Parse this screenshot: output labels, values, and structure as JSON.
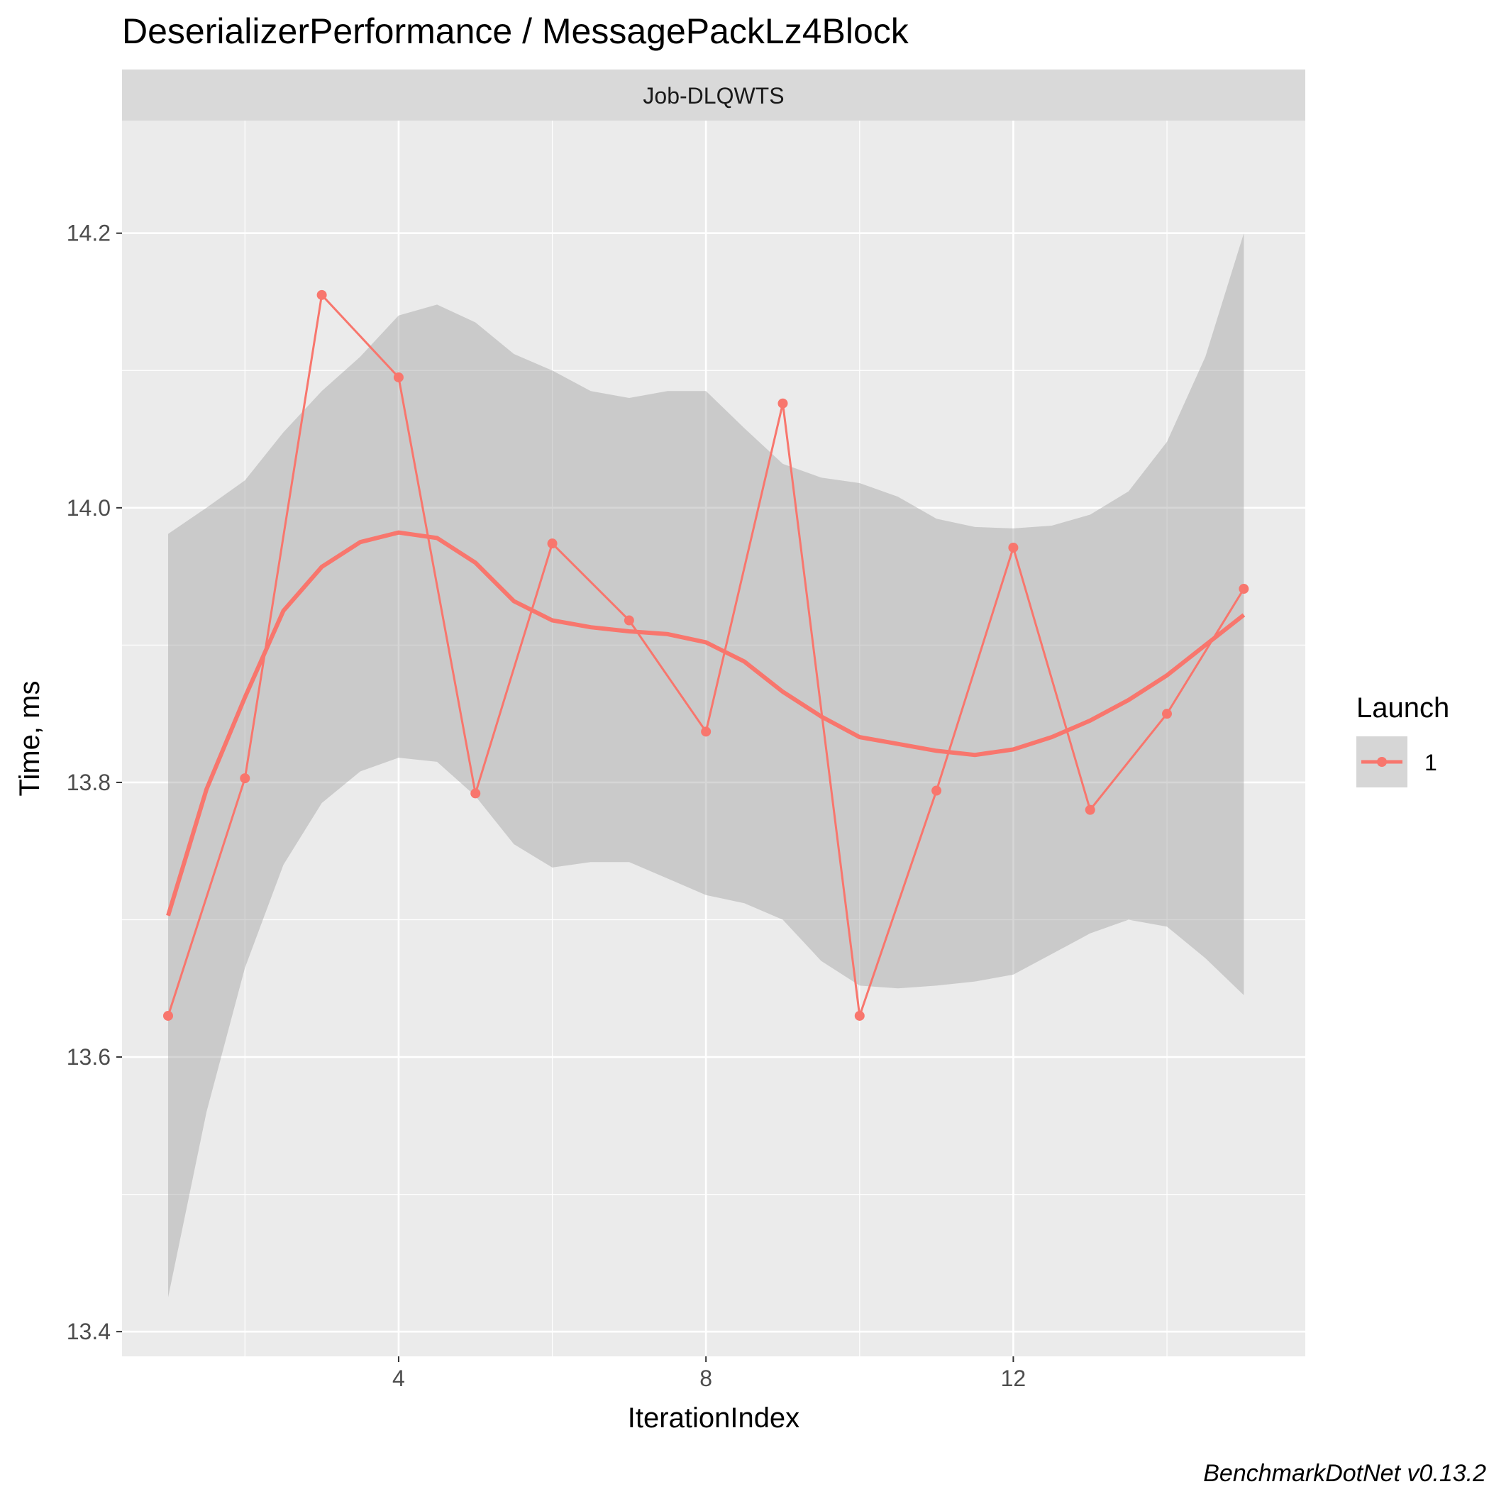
{
  "chart_data": {
    "type": "line",
    "title": "DeserializerPerformance / MessagePackLz4Block",
    "facet_label": "Job-DLQWTS",
    "xlabel": "IterationIndex",
    "ylabel": "Time, ms",
    "xlim": [
      0.4,
      15.8
    ],
    "ylim": [
      13.382,
      14.282
    ],
    "x_ticks": [
      4,
      8,
      12
    ],
    "y_ticks": [
      13.4,
      13.6,
      13.8,
      14.0,
      14.2
    ],
    "grid": true,
    "legend": {
      "title": "Launch",
      "position": "right",
      "entries": [
        "1"
      ]
    },
    "series": [
      {
        "name": "1",
        "color": "#F8766D",
        "x": [
          1,
          2,
          3,
          4,
          5,
          6,
          7,
          8,
          9,
          10,
          11,
          12,
          13,
          14,
          15
        ],
        "values": [
          13.63,
          13.803,
          14.155,
          14.095,
          13.792,
          13.974,
          13.918,
          13.837,
          14.076,
          13.63,
          13.794,
          13.971,
          13.78,
          13.85,
          13.941
        ]
      }
    ],
    "smooth": {
      "color": "#F8766D",
      "x": [
        1,
        1.5,
        2,
        2.5,
        3,
        3.5,
        4,
        4.5,
        5,
        5.5,
        6,
        6.5,
        7,
        7.5,
        8,
        8.5,
        9,
        9.5,
        10,
        10.5,
        11,
        11.5,
        12,
        12.5,
        13,
        13.5,
        14,
        14.5,
        15
      ],
      "values": [
        13.703,
        13.795,
        13.862,
        13.925,
        13.957,
        13.975,
        13.982,
        13.978,
        13.96,
        13.932,
        13.918,
        13.913,
        13.91,
        13.908,
        13.902,
        13.888,
        13.866,
        13.848,
        13.833,
        13.828,
        13.823,
        13.82,
        13.824,
        13.833,
        13.845,
        13.86,
        13.878,
        13.9,
        13.922
      ],
      "ci_lower": [
        13.425,
        13.56,
        13.665,
        13.74,
        13.785,
        13.808,
        13.818,
        13.815,
        13.79,
        13.755,
        13.738,
        13.742,
        13.742,
        13.73,
        13.718,
        13.712,
        13.7,
        13.67,
        13.652,
        13.65,
        13.652,
        13.655,
        13.66,
        13.675,
        13.69,
        13.7,
        13.695,
        13.672,
        13.645
      ],
      "ci_upper": [
        13.981,
        14.0,
        14.02,
        14.055,
        14.085,
        14.11,
        14.14,
        14.148,
        14.135,
        14.112,
        14.1,
        14.085,
        14.08,
        14.085,
        14.085,
        14.058,
        14.032,
        14.022,
        14.018,
        14.008,
        13.992,
        13.986,
        13.985,
        13.987,
        13.995,
        14.012,
        14.048,
        14.11,
        14.2
      ]
    }
  },
  "caption": "BenchmarkDotNet v0.13.2"
}
